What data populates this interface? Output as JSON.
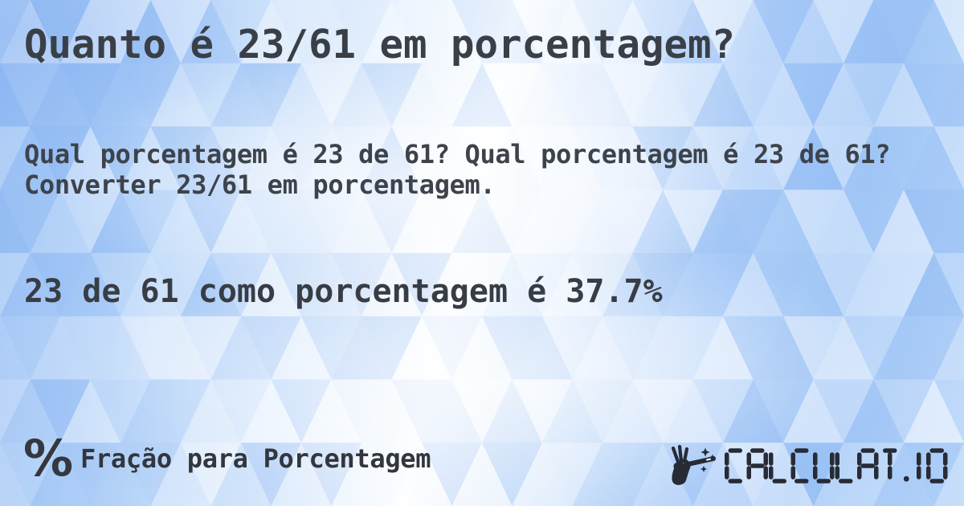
{
  "card": {
    "title": "Quanto é 23/61 em porcentagem?",
    "description": "Qual porcentagem é 23 de 61? Qual porcentagem é 23 de 61? Converter 23/61 em porcentagem.",
    "answer": "23 de 61 como porcentagem é 37.7%"
  },
  "footer": {
    "category": {
      "icon": "percent-icon",
      "icon_glyph": "%",
      "label": "Fração para Porcentagem"
    },
    "brand": {
      "icon": "magic-wand-hand-icon",
      "text": "CALCULAT.IO"
    }
  },
  "colors": {
    "background_blue": "#a9ccf7",
    "background_white": "#ffffff",
    "text_dark": "#3a3f47",
    "logo_dark": "#262b35"
  }
}
